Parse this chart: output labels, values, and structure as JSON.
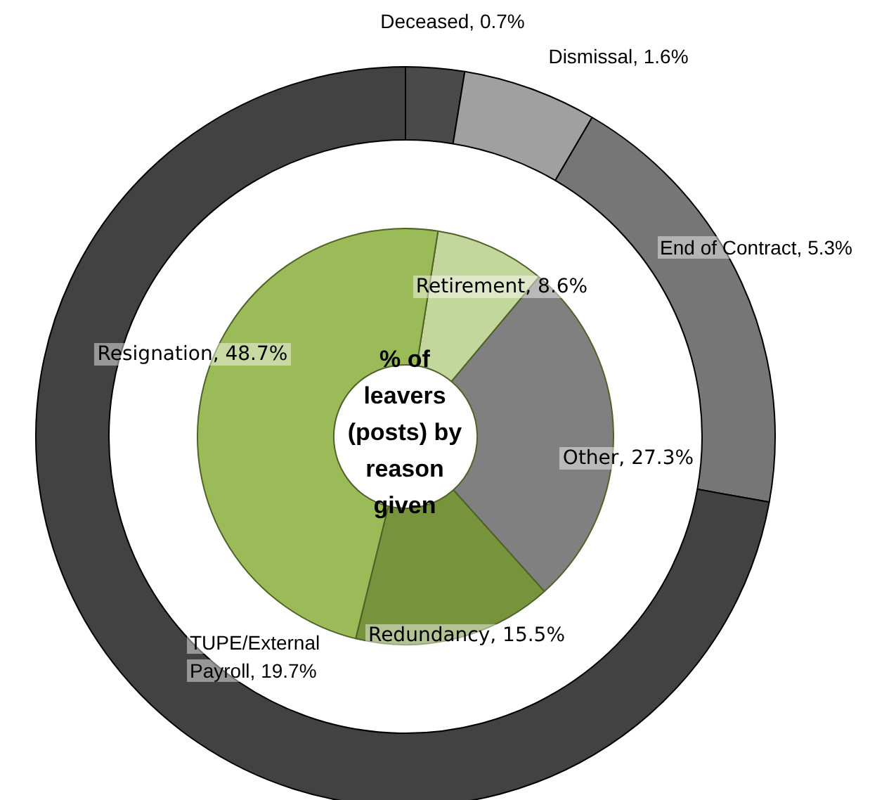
{
  "chart_data": [
    {
      "type": "donut",
      "title": "% of leavers (posts) by reason given",
      "categories": [
        "Retirement",
        "Other",
        "Redundancy",
        "Resignation"
      ],
      "values": [
        8.6,
        27.3,
        15.5,
        48.7
      ],
      "colors": [
        "#c3d69b",
        "#808080",
        "#77933c",
        "#9bbb59"
      ],
      "value_labels": [
        "8.6%",
        "27.3%",
        "15.5%",
        "48.7%"
      ]
    },
    {
      "type": "donut",
      "categories": [
        "Deceased",
        "Dismissal",
        "End of Contract",
        "TUPE/External Payroll"
      ],
      "values": [
        0.7,
        1.6,
        5.3,
        19.7
      ],
      "colors": [
        "#4a4a4a",
        "#a0a0a0",
        "#767676",
        "#424242"
      ],
      "value_labels": [
        "0.7%",
        "1.6%",
        "5.3%",
        "19.7%"
      ]
    }
  ]
}
